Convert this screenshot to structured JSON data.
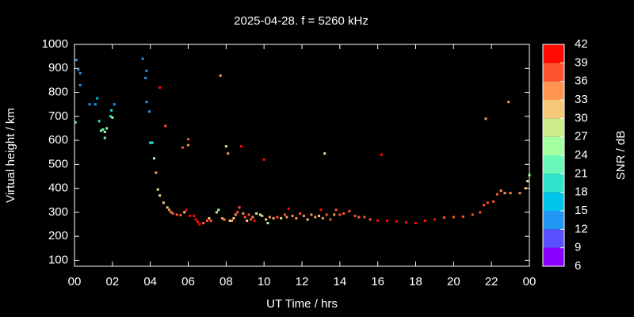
{
  "chart_data": {
    "type": "scatter",
    "title": "2025-04-28. f = 5260 kHz",
    "xlabel": "UT Time / hrs",
    "ylabel": "Virtual height / km",
    "colorbar_label": "SNR / dB",
    "xlim": [
      0,
      24
    ],
    "ylim": [
      75,
      1000
    ],
    "xticks": [
      {
        "value": 0,
        "label": "00"
      },
      {
        "value": 2,
        "label": "02"
      },
      {
        "value": 4,
        "label": "04"
      },
      {
        "value": 6,
        "label": "06"
      },
      {
        "value": 8,
        "label": "08"
      },
      10,
      12,
      14,
      16,
      18,
      20,
      22,
      {
        "value": 24,
        "label": "00"
      }
    ],
    "yticks": [
      100,
      200,
      300,
      400,
      500,
      600,
      700,
      800,
      900,
      1000
    ],
    "clim": [
      6,
      42
    ],
    "cticks": [
      6,
      9,
      12,
      15,
      18,
      21,
      24,
      27,
      30,
      33,
      36,
      39,
      42
    ],
    "colorscale": [
      "#8a00ff",
      "#5a50ff",
      "#2196f3",
      "#00c4e8",
      "#30e4cc",
      "#6af8b8",
      "#a4ffa0",
      "#cceb8c",
      "#f5c878",
      "#ff9450",
      "#ff5430",
      "#ff0a00"
    ],
    "x": [
      0.05,
      0.1,
      0.2,
      0.3,
      0.3,
      0.8,
      1.1,
      1.2,
      1.3,
      1.4,
      1.5,
      1.6,
      1.7,
      1.6,
      1.9,
      1.95,
      2.0,
      2.1,
      3.6,
      3.75,
      3.8,
      3.8,
      3.95,
      4.0,
      4.1,
      4.2,
      4.3,
      4.5,
      4.4,
      4.5,
      4.7,
      4.8,
      4.9,
      5.0,
      5.1,
      5.2,
      5.4,
      5.6,
      5.7,
      5.8,
      5.9,
      6.0,
      6.0,
      6.1,
      6.3,
      6.4,
      6.5,
      6.6,
      6.8,
      7.0,
      7.1,
      7.2,
      7.5,
      7.6,
      7.7,
      7.8,
      7.9,
      8.0,
      8.1,
      8.2,
      8.3,
      8.4,
      8.5,
      8.6,
      8.7,
      8.8,
      8.9,
      9.0,
      9.1,
      9.2,
      9.3,
      9.4,
      9.5,
      9.6,
      9.8,
      9.9,
      10.0,
      10.1,
      10.2,
      10.3,
      10.5,
      10.7,
      10.9,
      11.1,
      11.2,
      11.3,
      11.5,
      11.7,
      11.9,
      12.1,
      12.3,
      12.5,
      12.7,
      12.9,
      13.0,
      13.1,
      13.2,
      13.3,
      13.5,
      13.7,
      13.8,
      14.0,
      14.2,
      14.5,
      14.8,
      15.0,
      15.3,
      15.6,
      16.0,
      16.2,
      16.5,
      17.0,
      17.5,
      18.0,
      18.5,
      19.0,
      19.5,
      20.0,
      20.5,
      21.0,
      21.4,
      21.6,
      21.7,
      21.8,
      22.1,
      22.3,
      22.5,
      22.7,
      22.9,
      23.0,
      23.5,
      23.8,
      23.9,
      24.0
    ],
    "values": [
      675,
      935,
      895,
      880,
      830,
      750,
      750,
      775,
      680,
      640,
      645,
      635,
      650,
      610,
      700,
      725,
      695,
      750,
      940,
      860,
      890,
      760,
      720,
      590,
      590,
      525,
      465,
      820,
      395,
      370,
      340,
      660,
      320,
      310,
      300,
      295,
      290,
      288,
      570,
      300,
      310,
      605,
      580,
      285,
      285,
      270,
      260,
      250,
      255,
      265,
      275,
      265,
      300,
      310,
      870,
      275,
      270,
      575,
      545,
      265,
      265,
      275,
      290,
      300,
      320,
      575,
      295,
      280,
      265,
      290,
      270,
      280,
      265,
      295,
      290,
      285,
      520,
      270,
      255,
      280,
      275,
      280,
      275,
      290,
      280,
      315,
      285,
      275,
      295,
      285,
      270,
      290,
      280,
      285,
      310,
      275,
      545,
      290,
      270,
      290,
      310,
      290,
      295,
      305,
      285,
      280,
      280,
      270,
      265,
      540,
      265,
      262,
      258,
      255,
      265,
      270,
      278,
      280,
      282,
      290,
      300,
      330,
      690,
      340,
      345,
      375,
      390,
      380,
      760,
      380,
      380,
      400,
      430,
      455
    ],
    "snr": [
      22,
      12,
      12,
      14,
      14,
      13,
      13,
      16,
      18,
      22,
      22,
      24,
      24,
      22,
      19,
      20,
      24,
      14,
      12,
      12,
      12,
      14,
      14,
      20,
      20,
      24,
      33,
      39,
      27,
      30,
      30,
      36,
      31,
      33,
      34,
      36,
      36,
      36,
      36,
      32,
      39,
      36,
      33,
      39,
      39,
      39,
      39,
      39,
      38,
      38,
      30,
      37,
      27,
      26,
      33,
      33,
      33,
      28,
      33,
      27,
      33,
      31,
      33,
      36,
      36,
      39,
      33,
      36,
      30,
      36,
      36,
      33,
      39,
      27,
      28,
      32,
      39,
      32,
      24,
      33,
      33,
      36,
      30,
      36,
      33,
      39,
      33,
      33,
      36,
      33,
      30,
      33,
      33,
      30,
      39,
      33,
      27,
      36,
      36,
      33,
      36,
      36,
      36,
      36,
      38,
      38,
      38,
      38,
      39,
      39,
      39,
      39,
      40,
      40,
      39,
      39,
      38,
      38,
      38,
      37,
      37,
      38,
      33,
      38,
      38,
      36,
      35,
      35,
      35,
      35,
      35,
      30,
      28,
      26
    ]
  }
}
